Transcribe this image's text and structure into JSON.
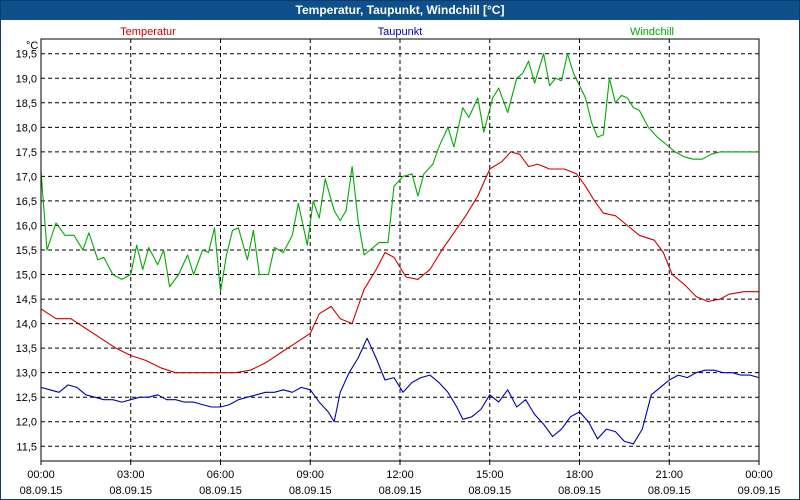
{
  "window": {
    "title": "Temperatur, Taupunkt, Windchill [°C]"
  },
  "chart_data": {
    "type": "line",
    "title": "Temperatur, Taupunkt, Windchill [°C]",
    "ylabel": "°C",
    "ylim": [
      11.2,
      19.8
    ],
    "y_ticks": [
      "11,5",
      "12,0",
      "12,5",
      "13,0",
      "13,5",
      "14,0",
      "14,5",
      "15,0",
      "15,5",
      "16,0",
      "16,5",
      "17,0",
      "17,5",
      "18,0",
      "18,5",
      "19,0",
      "19,5"
    ],
    "x_ticks": [
      {
        "time": "00:00",
        "date": "08.09.15"
      },
      {
        "time": "03:00",
        "date": "08.09.15"
      },
      {
        "time": "06:00",
        "date": "08.09.15"
      },
      {
        "time": "09:00",
        "date": "08.09.15"
      },
      {
        "time": "12:00",
        "date": "08.09.15"
      },
      {
        "time": "15:00",
        "date": "08.09.15"
      },
      {
        "time": "18:00",
        "date": "08.09.15"
      },
      {
        "time": "21:00",
        "date": "08.09.15"
      },
      {
        "time": "00:00",
        "date": "09.09.15"
      }
    ],
    "x_unit": "hours since 08.09.15 00:00",
    "grid": true,
    "legend_placement": "top",
    "series": [
      {
        "name": "Temperatur",
        "color": "#cc0000",
        "points": [
          [
            0,
            14.3
          ],
          [
            0.5,
            14.1
          ],
          [
            1,
            14.1
          ],
          [
            1.5,
            13.9
          ],
          [
            2,
            13.7
          ],
          [
            2.5,
            13.5
          ],
          [
            3,
            13.35
          ],
          [
            3.5,
            13.25
          ],
          [
            4,
            13.1
          ],
          [
            4.5,
            13.0
          ],
          [
            5,
            13.0
          ],
          [
            5.5,
            13.0
          ],
          [
            6,
            13.0
          ],
          [
            6.5,
            13.0
          ],
          [
            7,
            13.05
          ],
          [
            7.5,
            13.2
          ],
          [
            8,
            13.4
          ],
          [
            8.5,
            13.6
          ],
          [
            9,
            13.8
          ],
          [
            9.3,
            14.2
          ],
          [
            9.7,
            14.35
          ],
          [
            10,
            14.1
          ],
          [
            10.4,
            14.0
          ],
          [
            10.8,
            14.7
          ],
          [
            11.2,
            15.1
          ],
          [
            11.5,
            15.45
          ],
          [
            11.8,
            15.35
          ],
          [
            12.2,
            14.95
          ],
          [
            12.6,
            14.9
          ],
          [
            13,
            15.1
          ],
          [
            13.4,
            15.5
          ],
          [
            13.8,
            15.85
          ],
          [
            14.2,
            16.2
          ],
          [
            14.6,
            16.6
          ],
          [
            15,
            17.15
          ],
          [
            15.4,
            17.3
          ],
          [
            15.7,
            17.5
          ],
          [
            16,
            17.45
          ],
          [
            16.3,
            17.2
          ],
          [
            16.6,
            17.25
          ],
          [
            17,
            17.15
          ],
          [
            17.5,
            17.15
          ],
          [
            17.9,
            17.05
          ],
          [
            18.2,
            16.8
          ],
          [
            18.5,
            16.5
          ],
          [
            18.8,
            16.25
          ],
          [
            19.2,
            16.2
          ],
          [
            19.6,
            16.0
          ],
          [
            20,
            15.8
          ],
          [
            20.5,
            15.7
          ],
          [
            20.8,
            15.45
          ],
          [
            21.1,
            15.0
          ],
          [
            21.5,
            14.8
          ],
          [
            21.9,
            14.55
          ],
          [
            22.3,
            14.45
          ],
          [
            22.7,
            14.5
          ],
          [
            23,
            14.6
          ],
          [
            23.5,
            14.65
          ],
          [
            24,
            14.65
          ]
        ]
      },
      {
        "name": "Taupunkt",
        "color": "#0000aa",
        "points": [
          [
            0,
            12.7
          ],
          [
            0.3,
            12.65
          ],
          [
            0.6,
            12.6
          ],
          [
            0.9,
            12.75
          ],
          [
            1.2,
            12.7
          ],
          [
            1.5,
            12.55
          ],
          [
            1.8,
            12.5
          ],
          [
            2.1,
            12.45
          ],
          [
            2.4,
            12.45
          ],
          [
            2.7,
            12.4
          ],
          [
            3,
            12.45
          ],
          [
            3.3,
            12.5
          ],
          [
            3.6,
            12.5
          ],
          [
            3.9,
            12.55
          ],
          [
            4.2,
            12.45
          ],
          [
            4.5,
            12.45
          ],
          [
            4.8,
            12.4
          ],
          [
            5.1,
            12.4
          ],
          [
            5.4,
            12.35
          ],
          [
            5.7,
            12.3
          ],
          [
            6,
            12.3
          ],
          [
            6.3,
            12.35
          ],
          [
            6.6,
            12.45
          ],
          [
            6.9,
            12.5
          ],
          [
            7.2,
            12.55
          ],
          [
            7.5,
            12.6
          ],
          [
            7.8,
            12.6
          ],
          [
            8.1,
            12.65
          ],
          [
            8.4,
            12.6
          ],
          [
            8.7,
            12.7
          ],
          [
            9,
            12.65
          ],
          [
            9.3,
            12.4
          ],
          [
            9.6,
            12.2
          ],
          [
            9.8,
            12.0
          ],
          [
            10,
            12.6
          ],
          [
            10.3,
            13.0
          ],
          [
            10.6,
            13.3
          ],
          [
            10.9,
            13.7
          ],
          [
            11.2,
            13.3
          ],
          [
            11.5,
            12.85
          ],
          [
            11.8,
            12.9
          ],
          [
            12.1,
            12.6
          ],
          [
            12.4,
            12.8
          ],
          [
            12.7,
            12.9
          ],
          [
            13,
            12.95
          ],
          [
            13.3,
            12.8
          ],
          [
            13.6,
            12.6
          ],
          [
            13.9,
            12.3
          ],
          [
            14.1,
            12.05
          ],
          [
            14.4,
            12.1
          ],
          [
            14.7,
            12.25
          ],
          [
            15,
            12.55
          ],
          [
            15.3,
            12.4
          ],
          [
            15.6,
            12.65
          ],
          [
            15.9,
            12.3
          ],
          [
            16.2,
            12.45
          ],
          [
            16.5,
            12.15
          ],
          [
            16.8,
            11.95
          ],
          [
            17.1,
            11.7
          ],
          [
            17.4,
            11.85
          ],
          [
            17.7,
            12.1
          ],
          [
            18,
            12.2
          ],
          [
            18.3,
            12.0
          ],
          [
            18.6,
            11.65
          ],
          [
            18.9,
            11.85
          ],
          [
            19.2,
            11.8
          ],
          [
            19.5,
            11.6
          ],
          [
            19.8,
            11.55
          ],
          [
            20.1,
            11.85
          ],
          [
            20.4,
            12.55
          ],
          [
            20.7,
            12.7
          ],
          [
            21,
            12.85
          ],
          [
            21.3,
            12.95
          ],
          [
            21.6,
            12.9
          ],
          [
            21.9,
            13.0
          ],
          [
            22.2,
            13.05
          ],
          [
            22.5,
            13.05
          ],
          [
            22.8,
            13.0
          ],
          [
            23.1,
            13.0
          ],
          [
            23.4,
            12.95
          ],
          [
            23.7,
            12.95
          ],
          [
            24,
            12.9
          ]
        ]
      },
      {
        "name": "Windchill",
        "color": "#00aa00",
        "points": [
          [
            0,
            17.1
          ],
          [
            0.2,
            15.5
          ],
          [
            0.5,
            16.05
          ],
          [
            0.8,
            15.8
          ],
          [
            1.1,
            15.8
          ],
          [
            1.4,
            15.5
          ],
          [
            1.6,
            15.85
          ],
          [
            1.9,
            15.3
          ],
          [
            2.1,
            15.35
          ],
          [
            2.4,
            15.0
          ],
          [
            2.7,
            14.9
          ],
          [
            3,
            15.0
          ],
          [
            3.2,
            15.6
          ],
          [
            3.4,
            15.1
          ],
          [
            3.6,
            15.55
          ],
          [
            3.9,
            15.2
          ],
          [
            4.1,
            15.5
          ],
          [
            4.3,
            14.75
          ],
          [
            4.6,
            15.0
          ],
          [
            4.9,
            15.4
          ],
          [
            5.1,
            15.0
          ],
          [
            5.4,
            15.5
          ],
          [
            5.6,
            15.45
          ],
          [
            5.8,
            15.95
          ],
          [
            6,
            14.65
          ],
          [
            6.2,
            15.4
          ],
          [
            6.4,
            15.9
          ],
          [
            6.6,
            15.95
          ],
          [
            6.9,
            15.3
          ],
          [
            7.1,
            15.9
          ],
          [
            7.3,
            15.0
          ],
          [
            7.6,
            15.0
          ],
          [
            7.8,
            15.55
          ],
          [
            8.1,
            15.45
          ],
          [
            8.4,
            15.8
          ],
          [
            8.6,
            16.45
          ],
          [
            8.9,
            15.6
          ],
          [
            9.1,
            16.5
          ],
          [
            9.3,
            16.15
          ],
          [
            9.5,
            16.95
          ],
          [
            9.8,
            16.3
          ],
          [
            10,
            16.1
          ],
          [
            10.2,
            16.3
          ],
          [
            10.4,
            17.2
          ],
          [
            10.6,
            16.1
          ],
          [
            10.8,
            15.4
          ],
          [
            11,
            15.5
          ],
          [
            11.3,
            15.65
          ],
          [
            11.6,
            15.65
          ],
          [
            11.8,
            16.8
          ],
          [
            12.1,
            17.0
          ],
          [
            12.4,
            17.05
          ],
          [
            12.6,
            16.6
          ],
          [
            12.8,
            17.05
          ],
          [
            13.1,
            17.25
          ],
          [
            13.3,
            17.6
          ],
          [
            13.6,
            18.0
          ],
          [
            13.8,
            17.6
          ],
          [
            14.1,
            18.4
          ],
          [
            14.3,
            18.2
          ],
          [
            14.6,
            18.6
          ],
          [
            14.8,
            17.9
          ],
          [
            15.1,
            18.6
          ],
          [
            15.3,
            18.8
          ],
          [
            15.6,
            18.3
          ],
          [
            15.9,
            19.0
          ],
          [
            16.1,
            19.1
          ],
          [
            16.3,
            19.35
          ],
          [
            16.5,
            18.9
          ],
          [
            16.8,
            19.5
          ],
          [
            17,
            18.85
          ],
          [
            17.2,
            19.0
          ],
          [
            17.4,
            18.95
          ],
          [
            17.6,
            19.5
          ],
          [
            17.8,
            19.1
          ],
          [
            18,
            18.85
          ],
          [
            18.2,
            18.6
          ],
          [
            18.4,
            18.1
          ],
          [
            18.6,
            17.8
          ],
          [
            18.8,
            17.85
          ],
          [
            19,
            19.0
          ],
          [
            19.2,
            18.5
          ],
          [
            19.4,
            18.65
          ],
          [
            19.6,
            18.6
          ],
          [
            19.8,
            18.4
          ],
          [
            20,
            18.35
          ],
          [
            20.3,
            18.0
          ],
          [
            20.6,
            17.8
          ],
          [
            20.9,
            17.65
          ],
          [
            21.2,
            17.5
          ],
          [
            21.5,
            17.4
          ],
          [
            21.8,
            17.35
          ],
          [
            22.1,
            17.35
          ],
          [
            22.4,
            17.45
          ],
          [
            22.7,
            17.5
          ],
          [
            23,
            17.5
          ],
          [
            23.3,
            17.5
          ],
          [
            23.6,
            17.5
          ],
          [
            24,
            17.5
          ]
        ]
      }
    ]
  }
}
